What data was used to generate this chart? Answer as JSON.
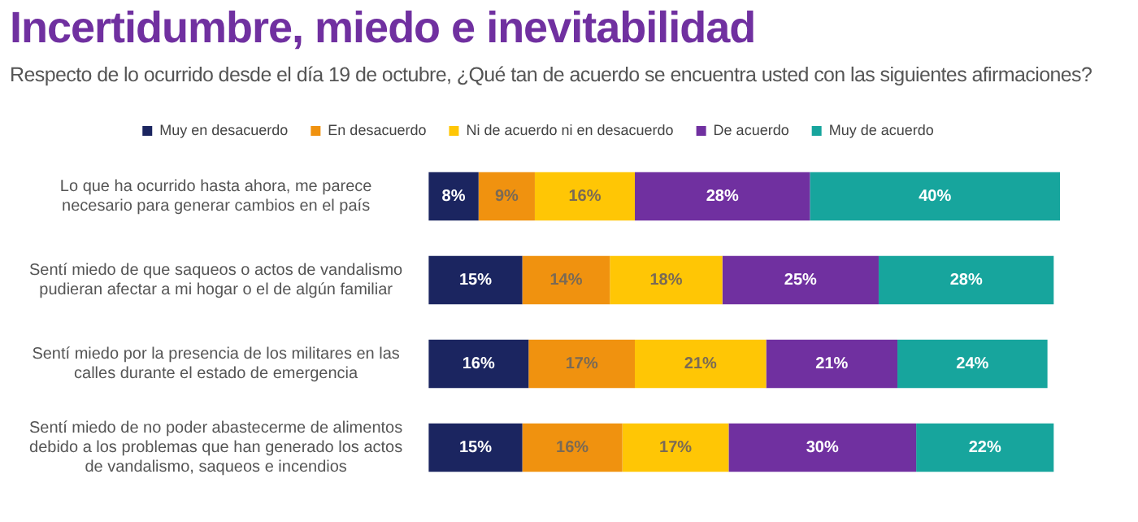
{
  "chart_data": {
    "type": "bar",
    "orientation": "horizontal",
    "stacked": true,
    "legend": "top",
    "title": "Incertidumbre, miedo e inevitabilidad",
    "subtitle": "Respecto de lo ocurrido desde el día 19 de octubre, ¿Qué tan de acuerdo se encuentra usted con las siguientes afirmaciones?",
    "categories": [
      "Lo que ha ocurrido hasta ahora, me parece necesario para generar cambios en el país",
      "Sentí miedo de que saqueos o actos de vandalismo pudieran afectar a mi hogar o el de algún familiar",
      "Sentí miedo por la presencia de los militares en las calles durante el estado de emergencia",
      "Sentí miedo de no poder abastecerme de alimentos debido a los problemas que han generado los actos de vandalismo, saqueos e incendios"
    ],
    "series": [
      {
        "name": "Muy en desacuerdo",
        "color": "#1b2560",
        "values": [
          8,
          15,
          16,
          15
        ],
        "value_labels": [
          "8%",
          "15%",
          "16%",
          "15%"
        ]
      },
      {
        "name": "En desacuerdo",
        "color": "#f0920f",
        "values": [
          9,
          14,
          17,
          16
        ],
        "value_labels": [
          "9%",
          "14%",
          "17%",
          "16%"
        ]
      },
      {
        "name": "Ni de acuerdo ni en desacuerdo",
        "color": "#ffc605",
        "values": [
          16,
          18,
          21,
          17
        ],
        "value_labels": [
          "16%",
          "18%",
          "21%",
          "17%"
        ]
      },
      {
        "name": "De acuerdo",
        "color": "#7030a0",
        "values": [
          28,
          25,
          21,
          30
        ],
        "value_labels": [
          "28%",
          "25%",
          "21%",
          "30%"
        ]
      },
      {
        "name": "Muy de acuerdo",
        "color": "#17a59d",
        "values": [
          40,
          28,
          24,
          22
        ],
        "value_labels": [
          "40%",
          "28%",
          "24%",
          "22%"
        ]
      }
    ]
  }
}
